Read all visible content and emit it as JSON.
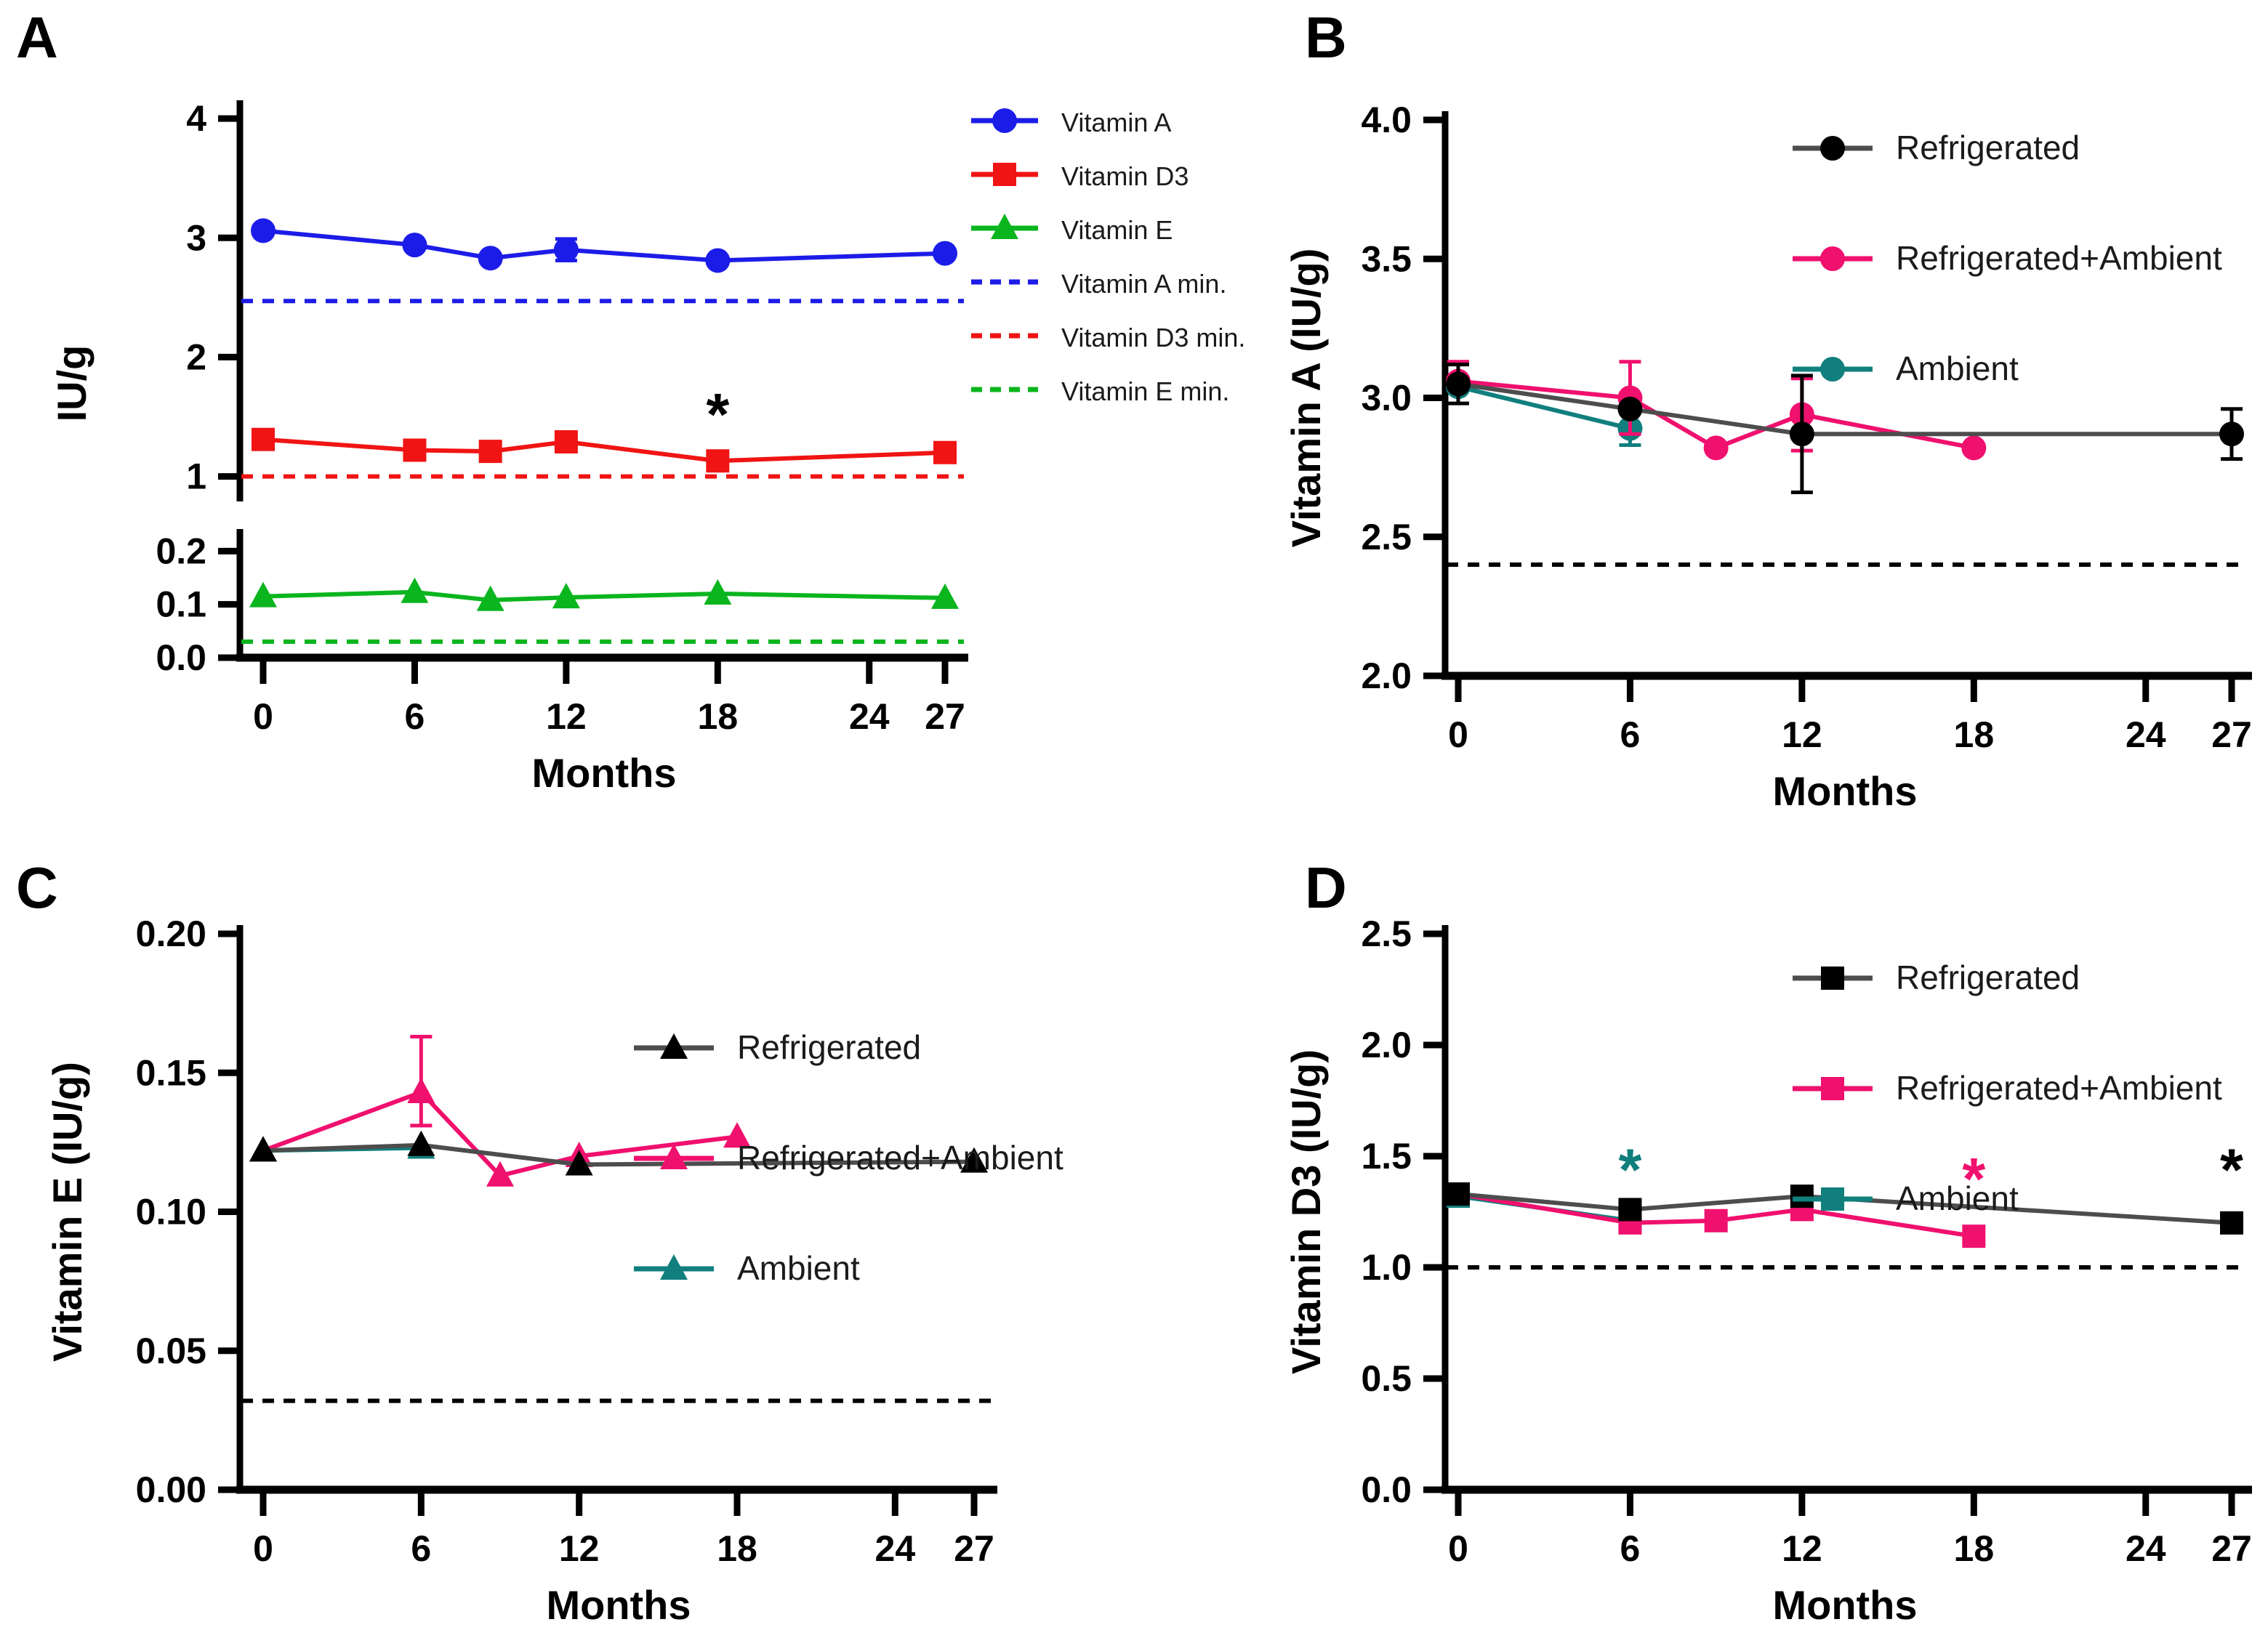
{
  "figure": {
    "background": "#ffffff"
  },
  "colors": {
    "blue": "#1c1ce8",
    "red": "#f01414",
    "green": "#0ab51e",
    "pink": "#f0106e",
    "teal": "#107f7d",
    "black": "#000000",
    "gray_line": "#4d4d4d"
  },
  "chart_data": [
    {
      "id": "A",
      "type": "line",
      "label": "A",
      "xlabel": "Months",
      "ylabel": "IU/g",
      "x": {
        "min": 0,
        "max": 27,
        "ticks": [
          0,
          6,
          12,
          18,
          24,
          27
        ]
      },
      "y_segments": [
        {
          "range": [
            0.9,
            4.08
          ],
          "ticks": [
            {
              "v": 4,
              "label": "4"
            },
            {
              "v": 3,
              "label": "3"
            },
            {
              "v": 2,
              "label": "2"
            },
            {
              "v": 1,
              "label": "1"
            }
          ]
        },
        {
          "range": [
            0.0,
            0.225
          ],
          "ticks": [
            {
              "v": 0.2,
              "label": "0.2"
            },
            {
              "v": 0.1,
              "label": "0.1"
            },
            {
              "v": 0.0,
              "label": "0.0"
            }
          ]
        }
      ],
      "series": [
        {
          "name": "Vitamin A",
          "color": "blue",
          "marker": "circle",
          "segment": 0,
          "points": [
            {
              "m": 0,
              "v": 3.06
            },
            {
              "m": 6,
              "v": 2.94
            },
            {
              "m": 9,
              "v": 2.83
            },
            {
              "m": 12,
              "v": 2.9,
              "e": 0.09
            },
            {
              "m": 18,
              "v": 2.81
            },
            {
              "m": 27,
              "v": 2.87
            }
          ]
        },
        {
          "name": "Vitamin D3",
          "color": "red",
          "marker": "square",
          "segment": 0,
          "points": [
            {
              "m": 0,
              "v": 1.31
            },
            {
              "m": 6,
              "v": 1.22
            },
            {
              "m": 9,
              "v": 1.21
            },
            {
              "m": 12,
              "v": 1.29
            },
            {
              "m": 18,
              "v": 1.13
            },
            {
              "m": 27,
              "v": 1.2
            }
          ]
        },
        {
          "name": "Vitamin E",
          "color": "green",
          "marker": "triangle",
          "segment": 1,
          "points": [
            {
              "m": 0,
              "v": 0.115
            },
            {
              "m": 6,
              "v": 0.123
            },
            {
              "m": 9,
              "v": 0.108
            },
            {
              "m": 12,
              "v": 0.113
            },
            {
              "m": 18,
              "v": 0.12
            },
            {
              "m": 27,
              "v": 0.112
            }
          ]
        }
      ],
      "thresholds": [
        {
          "name": "Vitamin A min.",
          "value": 2.47,
          "color": "blue",
          "segment": 0
        },
        {
          "name": "Vitamin D3 min.",
          "value": 1.0,
          "color": "red",
          "segment": 0
        },
        {
          "name": "Vitamin E min.",
          "value": 0.03,
          "color": "green",
          "segment": 1
        }
      ],
      "annotations": [
        {
          "m": 18,
          "v": 1.58,
          "segment": 0,
          "text": "*",
          "color": "black"
        }
      ],
      "legend": [
        {
          "label": "Vitamin A",
          "color": "blue",
          "marker": "circle",
          "line": "solid"
        },
        {
          "label": "Vitamin D3",
          "color": "red",
          "marker": "square",
          "line": "solid"
        },
        {
          "label": "Vitamin E",
          "color": "green",
          "marker": "triangle",
          "line": "solid"
        },
        {
          "label": "Vitamin A min.",
          "color": "blue",
          "marker": "none",
          "line": "dashed"
        },
        {
          "label": "Vitamin D3 min.",
          "color": "red",
          "marker": "none",
          "line": "dashed"
        },
        {
          "label": "Vitamin E min.",
          "color": "green",
          "marker": "none",
          "line": "dashed"
        }
      ]
    },
    {
      "id": "B",
      "type": "line",
      "label": "B",
      "xlabel": "Months",
      "ylabel": "Vitamin A (IU/g)",
      "x": {
        "min": 0,
        "max": 27,
        "ticks": [
          0,
          6,
          12,
          18,
          24,
          27
        ]
      },
      "y_segments": [
        {
          "range": [
            2.0,
            4.0
          ],
          "ticks": [
            {
              "v": 4.0,
              "label": "4.0"
            },
            {
              "v": 3.5,
              "label": "3.5"
            },
            {
              "v": 3.0,
              "label": "3.0"
            },
            {
              "v": 2.5,
              "label": "2.5"
            },
            {
              "v": 2.0,
              "label": "2.0"
            }
          ]
        }
      ],
      "series": [
        {
          "name": "Ambient",
          "color": "teal",
          "marker": "circle",
          "segment": 0,
          "points": [
            {
              "m": 0,
              "v": 3.04
            },
            {
              "m": 6,
              "v": 2.89,
              "e": 0.06
            }
          ]
        },
        {
          "name": "Refrigerated+Ambient",
          "color": "pink",
          "marker": "circle",
          "segment": 0,
          "points": [
            {
              "m": 0,
              "v": 3.06,
              "eu": 0.07,
              "ed": 0
            },
            {
              "m": 6,
              "v": 3.0,
              "e": 0.13
            },
            {
              "m": 9,
              "v": 2.82
            },
            {
              "m": 12,
              "v": 2.94,
              "e": 0.13
            },
            {
              "m": 18,
              "v": 2.82
            }
          ]
        },
        {
          "name": "Refrigerated",
          "color": "black",
          "line_color": "gray_line",
          "marker": "circle",
          "segment": 0,
          "points": [
            {
              "m": 0,
              "v": 3.05,
              "e": 0.07
            },
            {
              "m": 6,
              "v": 2.96
            },
            {
              "m": 12,
              "v": 2.87,
              "e": 0.21
            },
            {
              "m": 27,
              "v": 2.87,
              "e": 0.09
            }
          ]
        }
      ],
      "thresholds": [
        {
          "name": "Vitamin A min.",
          "value": 2.4,
          "color": "black",
          "segment": 0
        }
      ],
      "annotations": [],
      "legend": [
        {
          "label": "Refrigerated",
          "color": "black",
          "line_color": "gray_line",
          "marker": "circle",
          "line": "solid"
        },
        {
          "label": "Refrigerated+Ambient",
          "color": "pink",
          "marker": "circle",
          "line": "solid"
        },
        {
          "label": "Ambient",
          "color": "teal",
          "marker": "circle",
          "line": "solid"
        }
      ]
    },
    {
      "id": "C",
      "type": "line",
      "label": "C",
      "xlabel": "Months",
      "ylabel": "Vitamin E (IU/g)",
      "x": {
        "min": 0,
        "max": 27,
        "ticks": [
          0,
          6,
          12,
          18,
          24,
          27
        ]
      },
      "y_segments": [
        {
          "range": [
            0.0,
            0.2
          ],
          "ticks": [
            {
              "v": 0.2,
              "label": "0.20"
            },
            {
              "v": 0.15,
              "label": "0.15"
            },
            {
              "v": 0.1,
              "label": "0.10"
            },
            {
              "v": 0.05,
              "label": "0.05"
            },
            {
              "v": 0.0,
              "label": "0.00"
            }
          ]
        }
      ],
      "series": [
        {
          "name": "Ambient",
          "color": "teal",
          "marker": "triangle",
          "segment": 0,
          "points": [
            {
              "m": 0,
              "v": 0.122
            },
            {
              "m": 6,
              "v": 0.123
            }
          ]
        },
        {
          "name": "Refrigerated+Ambient",
          "color": "pink",
          "marker": "triangle",
          "segment": 0,
          "points": [
            {
              "m": 0,
              "v": 0.122
            },
            {
              "m": 6,
              "v": 0.143,
              "eu": 0.02,
              "ed": 0.012
            },
            {
              "m": 9,
              "v": 0.113
            },
            {
              "m": 12,
              "v": 0.12
            },
            {
              "m": 18,
              "v": 0.127
            }
          ]
        },
        {
          "name": "Refrigerated",
          "color": "black",
          "line_color": "gray_line",
          "marker": "triangle",
          "segment": 0,
          "points": [
            {
              "m": 0,
              "v": 0.122
            },
            {
              "m": 6,
              "v": 0.124
            },
            {
              "m": 12,
              "v": 0.117
            },
            {
              "m": 27,
              "v": 0.118
            }
          ]
        }
      ],
      "thresholds": [
        {
          "name": "Vitamin E min.",
          "value": 0.032,
          "color": "black",
          "segment": 0
        }
      ],
      "annotations": [],
      "legend": [
        {
          "label": "Refrigerated",
          "color": "black",
          "line_color": "gray_line",
          "marker": "triangle",
          "line": "solid"
        },
        {
          "label": "Refrigerated+Ambient",
          "color": "pink",
          "marker": "triangle",
          "line": "solid"
        },
        {
          "label": "Ambient",
          "color": "teal",
          "marker": "triangle",
          "line": "solid"
        }
      ]
    },
    {
      "id": "D",
      "type": "line",
      "label": "D",
      "xlabel": "Months",
      "ylabel": "Vitamin D3 (IU/g)",
      "x": {
        "min": 0,
        "max": 27,
        "ticks": [
          0,
          6,
          12,
          18,
          24,
          27
        ]
      },
      "y_segments": [
        {
          "range": [
            0.0,
            2.5
          ],
          "ticks": [
            {
              "v": 2.5,
              "label": "2.5"
            },
            {
              "v": 2.0,
              "label": "2.0"
            },
            {
              "v": 1.5,
              "label": "1.5"
            },
            {
              "v": 1.0,
              "label": "1.0"
            },
            {
              "v": 0.5,
              "label": "0.5"
            },
            {
              "v": 0.0,
              "label": "0.0"
            }
          ]
        }
      ],
      "series": [
        {
          "name": "Ambient",
          "color": "teal",
          "marker": "square",
          "segment": 0,
          "points": [
            {
              "m": 0,
              "v": 1.32
            },
            {
              "m": 6,
              "v": 1.21
            }
          ]
        },
        {
          "name": "Refrigerated+Ambient",
          "color": "pink",
          "marker": "square",
          "segment": 0,
          "points": [
            {
              "m": 0,
              "v": 1.33
            },
            {
              "m": 6,
              "v": 1.2
            },
            {
              "m": 9,
              "v": 1.21
            },
            {
              "m": 12,
              "v": 1.26
            },
            {
              "m": 18,
              "v": 1.14
            }
          ]
        },
        {
          "name": "Refrigerated",
          "color": "black",
          "line_color": "gray_line",
          "marker": "square",
          "segment": 0,
          "points": [
            {
              "m": 0,
              "v": 1.33
            },
            {
              "m": 6,
              "v": 1.26
            },
            {
              "m": 12,
              "v": 1.32
            },
            {
              "m": 27,
              "v": 1.2
            }
          ]
        }
      ],
      "thresholds": [
        {
          "name": "Vitamin D3 min.",
          "value": 1.0,
          "color": "black",
          "segment": 0
        }
      ],
      "annotations": [
        {
          "m": 6,
          "v": 1.47,
          "segment": 0,
          "text": "*",
          "color": "teal"
        },
        {
          "m": 18,
          "v": 1.43,
          "segment": 0,
          "text": "*",
          "color": "pink"
        },
        {
          "m": 27,
          "v": 1.47,
          "segment": 0,
          "text": "*",
          "color": "black"
        }
      ],
      "legend": [
        {
          "label": "Refrigerated",
          "color": "black",
          "line_color": "gray_line",
          "marker": "square",
          "line": "solid"
        },
        {
          "label": "Refrigerated+Ambient",
          "color": "pink",
          "marker": "square",
          "line": "solid"
        },
        {
          "label": "Ambient",
          "color": "teal",
          "marker": "square",
          "line": "solid"
        }
      ]
    }
  ]
}
